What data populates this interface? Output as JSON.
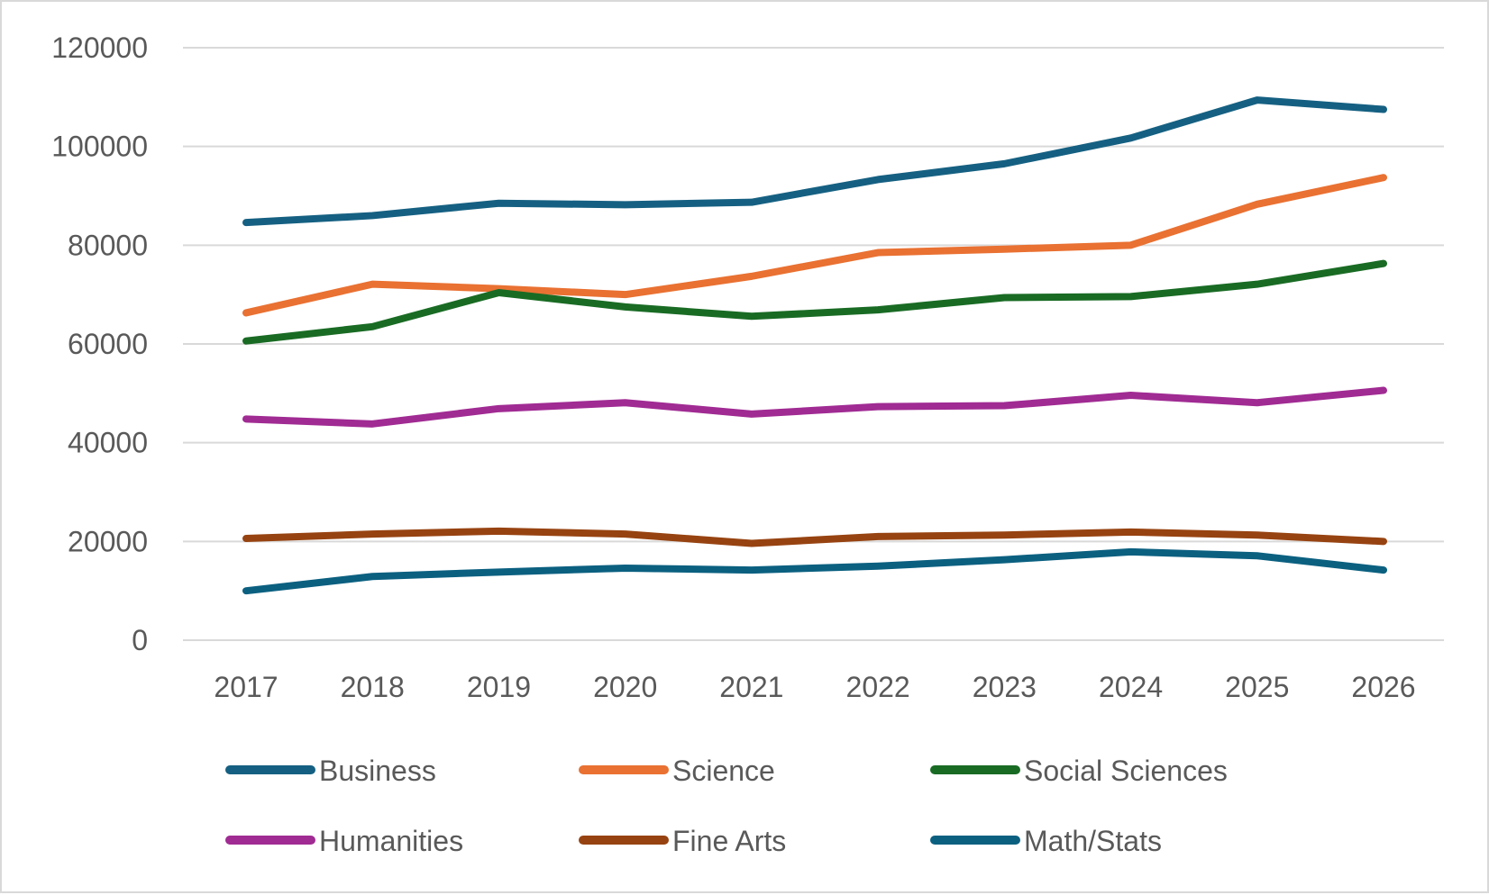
{
  "chart_data": {
    "type": "line",
    "title": "",
    "xlabel": "",
    "ylabel": "",
    "ylim": [
      0,
      120000
    ],
    "yticks": [
      "0",
      "20000",
      "40000",
      "60000",
      "80000",
      "100000",
      "120000"
    ],
    "grid": true,
    "legend_position": "bottom",
    "categories": [
      "2017",
      "2018",
      "2019",
      "2020",
      "2021",
      "2022",
      "2023",
      "2024",
      "2025",
      "2026"
    ],
    "series": [
      {
        "name": "Business",
        "color": "#156082",
        "values": [
          84600,
          86000,
          88500,
          88200,
          88700,
          93300,
          96500,
          101700,
          109400,
          107500
        ]
      },
      {
        "name": "Science",
        "color": "#E97132",
        "values": [
          66300,
          72100,
          71200,
          70000,
          73700,
          78500,
          79200,
          80000,
          88300,
          93700
        ]
      },
      {
        "name": "Social Sciences",
        "color": "#196B24",
        "values": [
          60600,
          63500,
          70400,
          67500,
          65600,
          66900,
          69400,
          69600,
          72100,
          76300
        ]
      },
      {
        "name": "Humanities",
        "color": "#A02B93",
        "values": [
          44800,
          43800,
          46900,
          48100,
          45800,
          47300,
          47500,
          49600,
          48100,
          50600
        ]
      },
      {
        "name": "Fine Arts",
        "color": "#974311",
        "values": [
          20600,
          21500,
          22100,
          21500,
          19600,
          21000,
          21300,
          21900,
          21300,
          20000
        ]
      },
      {
        "name": "Math/Stats",
        "color": "#0B6080",
        "values": [
          10000,
          12900,
          13800,
          14600,
          14200,
          15000,
          16300,
          17900,
          17100,
          14200
        ]
      }
    ]
  }
}
